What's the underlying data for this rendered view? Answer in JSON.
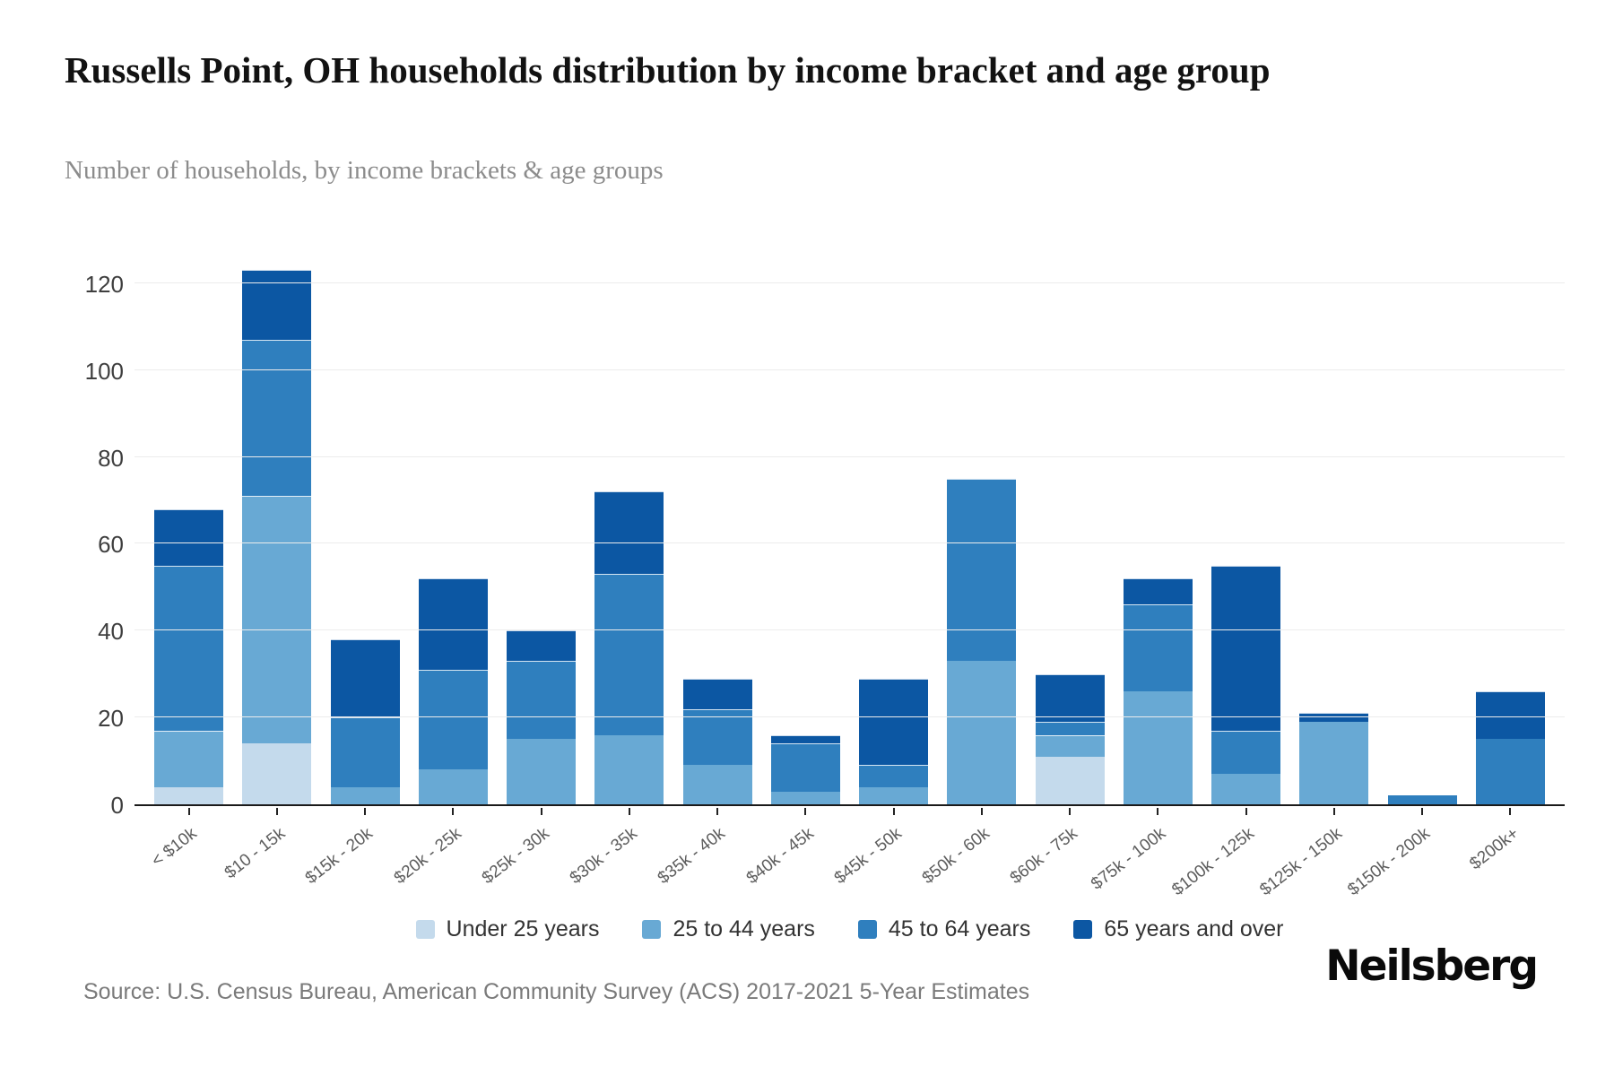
{
  "title": "Russells Point, OH households distribution by income bracket and age group",
  "subtitle": "Number of households, by income brackets & age groups",
  "source": "Source: U.S. Census Bureau, American Community Survey (ACS) 2017-2021 5-Year Estimates",
  "logo": "Neilsberg",
  "chart_data": {
    "type": "bar",
    "stacked": true,
    "title": "Russells Point, OH households distribution by income bracket and age group",
    "xlabel": "",
    "ylabel": "Number of households",
    "ylim": [
      0,
      133
    ],
    "yticks": [
      0,
      20,
      40,
      60,
      80,
      100,
      120
    ],
    "grid": true,
    "legend_position": "bottom",
    "categories": [
      "< $10k",
      "$10 - 15k",
      "$15k - 20k",
      "$20k - 25k",
      "$25k - 30k",
      "$30k - 35k",
      "$35k - 40k",
      "$40k - 45k",
      "$45k - 50k",
      "$50k - 60k",
      "$60k - 75k",
      "$75k - 100k",
      "$100k - 125k",
      "$125k - 150k",
      "$150k - 200k",
      "$200k+"
    ],
    "series": [
      {
        "name": "Under 25 years",
        "color": "#c4daec",
        "values": [
          4,
          14,
          0,
          0,
          0,
          0,
          0,
          0,
          0,
          0,
          11,
          0,
          0,
          0,
          0,
          0
        ]
      },
      {
        "name": "25 to 44 years",
        "color": "#68a9d4",
        "values": [
          13,
          57,
          4,
          8,
          15,
          16,
          9,
          3,
          4,
          33,
          5,
          26,
          7,
          19,
          0,
          0
        ]
      },
      {
        "name": "45 to 64 years",
        "color": "#2f7fbe",
        "values": [
          38,
          36,
          16,
          23,
          18,
          37,
          13,
          11,
          5,
          42,
          3,
          20,
          10,
          0,
          2,
          15
        ]
      },
      {
        "name": "65 years and over",
        "color": "#0c57a3",
        "values": [
          13,
          16,
          18,
          21,
          7,
          19,
          7,
          2,
          20,
          0,
          11,
          6,
          38,
          2,
          0,
          11
        ]
      }
    ],
    "totals": [
      68,
      123,
      38,
      52,
      40,
      72,
      29,
      16,
      29,
      75,
      30,
      52,
      55,
      21,
      2,
      26
    ]
  }
}
